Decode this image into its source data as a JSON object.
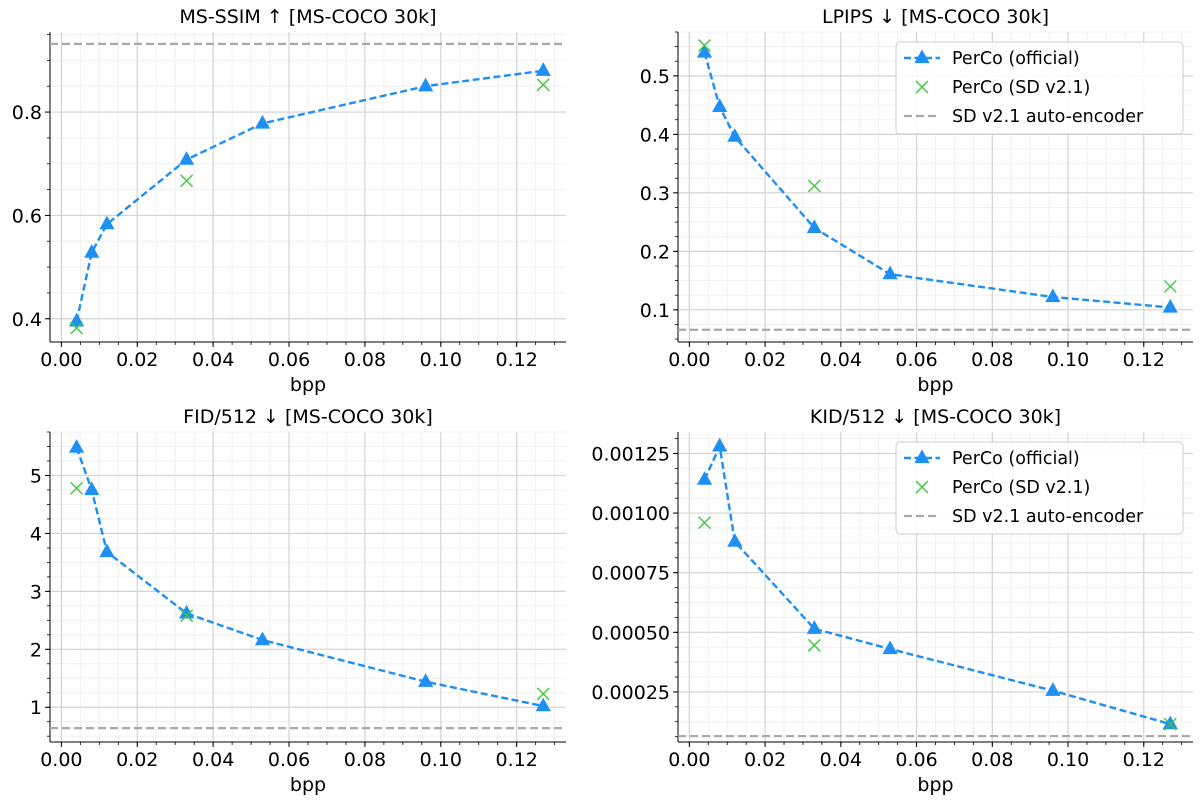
{
  "legend_labels": {
    "official": "PerCo (official)",
    "sd": "PerCo (SD v2.1)",
    "baseline": "SD v2.1 auto-encoder"
  },
  "colors": {
    "official": "#1f8ff3",
    "sd": "#3cc83c",
    "baseline": "#a8a8a8",
    "grid_major": "#d4d4d4",
    "grid_minor": "#f0f0f0"
  },
  "chart_data": [
    {
      "type": "line",
      "title": "MS-SSIM ↑  [MS-COCO 30k]",
      "xlabel": "bpp",
      "ylabel": "",
      "xlim": [
        -0.003,
        0.133
      ],
      "ylim": [
        0.355,
        0.955
      ],
      "xticks": [
        0.0,
        0.02,
        0.04,
        0.06,
        0.08,
        0.1,
        0.12
      ],
      "xtick_labels": [
        "0.00",
        "0.02",
        "0.04",
        "0.06",
        "0.08",
        "0.10",
        "0.12"
      ],
      "yticks": [
        0.4,
        0.6,
        0.8
      ],
      "ytick_labels": [
        "0.4",
        "0.6",
        "0.8"
      ],
      "grid": true,
      "legend": "",
      "series": [
        {
          "name": "PerCo (official)",
          "style": "dashed-triangle",
          "x": [
            0.004,
            0.008,
            0.012,
            0.033,
            0.053,
            0.096,
            0.127
          ],
          "y": [
            0.395,
            0.528,
            0.583,
            0.708,
            0.778,
            0.85,
            0.88
          ]
        },
        {
          "name": "PerCo (SD v2.1)",
          "style": "x-marker",
          "x": [
            0.004,
            0.033,
            0.127
          ],
          "y": [
            0.382,
            0.667,
            0.853
          ]
        },
        {
          "name": "SD v2.1 auto-encoder",
          "style": "hline",
          "y": 0.932
        }
      ]
    },
    {
      "type": "line",
      "title": "LPIPS ↓  [MS-COCO 30k]",
      "xlabel": "bpp",
      "ylabel": "",
      "xlim": [
        -0.003,
        0.133
      ],
      "ylim": [
        0.045,
        0.575
      ],
      "xticks": [
        0.0,
        0.02,
        0.04,
        0.06,
        0.08,
        0.1,
        0.12
      ],
      "xtick_labels": [
        "0.00",
        "0.02",
        "0.04",
        "0.06",
        "0.08",
        "0.10",
        "0.12"
      ],
      "yticks": [
        0.1,
        0.2,
        0.3,
        0.4,
        0.5
      ],
      "ytick_labels": [
        "0.1",
        "0.2",
        "0.3",
        "0.4",
        "0.5"
      ],
      "grid": true,
      "legend": "top-right",
      "series": [
        {
          "name": "PerCo (official)",
          "style": "dashed-triangle",
          "x": [
            0.004,
            0.008,
            0.012,
            0.033,
            0.053,
            0.096,
            0.127
          ],
          "y": [
            0.54,
            0.447,
            0.396,
            0.24,
            0.161,
            0.122,
            0.104
          ]
        },
        {
          "name": "PerCo (SD v2.1)",
          "style": "x-marker",
          "x": [
            0.004,
            0.033,
            0.127
          ],
          "y": [
            0.552,
            0.312,
            0.14
          ]
        },
        {
          "name": "SD v2.1 auto-encoder",
          "style": "hline",
          "y": 0.066
        }
      ]
    },
    {
      "type": "line",
      "title": "FID/512 ↓  [MS-COCO 30k]",
      "xlabel": "bpp",
      "ylabel": "",
      "xlim": [
        -0.003,
        0.133
      ],
      "ylim": [
        0.4,
        5.75
      ],
      "xticks": [
        0.0,
        0.02,
        0.04,
        0.06,
        0.08,
        0.1,
        0.12
      ],
      "xtick_labels": [
        "0.00",
        "0.02",
        "0.04",
        "0.06",
        "0.08",
        "0.10",
        "0.12"
      ],
      "yticks": [
        1,
        2,
        3,
        4,
        5
      ],
      "ytick_labels": [
        "1",
        "2",
        "3",
        "4",
        "5"
      ],
      "grid": true,
      "legend": "",
      "series": [
        {
          "name": "PerCo (official)",
          "style": "dashed-triangle",
          "x": [
            0.004,
            0.008,
            0.012,
            0.033,
            0.053,
            0.096,
            0.127
          ],
          "y": [
            5.48,
            4.75,
            3.68,
            2.62,
            2.16,
            1.44,
            1.02
          ]
        },
        {
          "name": "PerCo (SD v2.1)",
          "style": "x-marker",
          "x": [
            0.004,
            0.033,
            0.127
          ],
          "y": [
            4.78,
            2.58,
            1.23
          ]
        },
        {
          "name": "SD v2.1 auto-encoder",
          "style": "hline",
          "y": 0.64
        }
      ]
    },
    {
      "type": "line",
      "title": "KID/512 ↓  [MS-COCO 30k]",
      "xlabel": "bpp",
      "ylabel": "",
      "xlim": [
        -0.003,
        0.133
      ],
      "ylim": [
        4e-05,
        0.00134
      ],
      "xticks": [
        0.0,
        0.02,
        0.04,
        0.06,
        0.08,
        0.1,
        0.12
      ],
      "xtick_labels": [
        "0.00",
        "0.02",
        "0.04",
        "0.06",
        "0.08",
        "0.10",
        "0.12"
      ],
      "yticks": [
        0.00025,
        0.0005,
        0.00075,
        0.001,
        0.00125
      ],
      "ytick_labels": [
        "0.00025",
        "0.00050",
        "0.00075",
        "0.00100",
        "0.00125"
      ],
      "grid": true,
      "legend": "top-right",
      "series": [
        {
          "name": "PerCo (official)",
          "style": "dashed-triangle",
          "x": [
            0.004,
            0.008,
            0.012,
            0.033,
            0.053,
            0.096,
            0.127
          ],
          "y": [
            0.00114,
            0.00128,
            0.00088,
            0.000515,
            0.00043,
            0.000255,
            0.000115
          ]
        },
        {
          "name": "PerCo (SD v2.1)",
          "style": "x-marker",
          "x": [
            0.004,
            0.033,
            0.127
          ],
          "y": [
            0.00096,
            0.000445,
            0.000115
          ]
        },
        {
          "name": "SD v2.1 auto-encoder",
          "style": "hline",
          "y": 6.5e-05
        }
      ]
    }
  ]
}
